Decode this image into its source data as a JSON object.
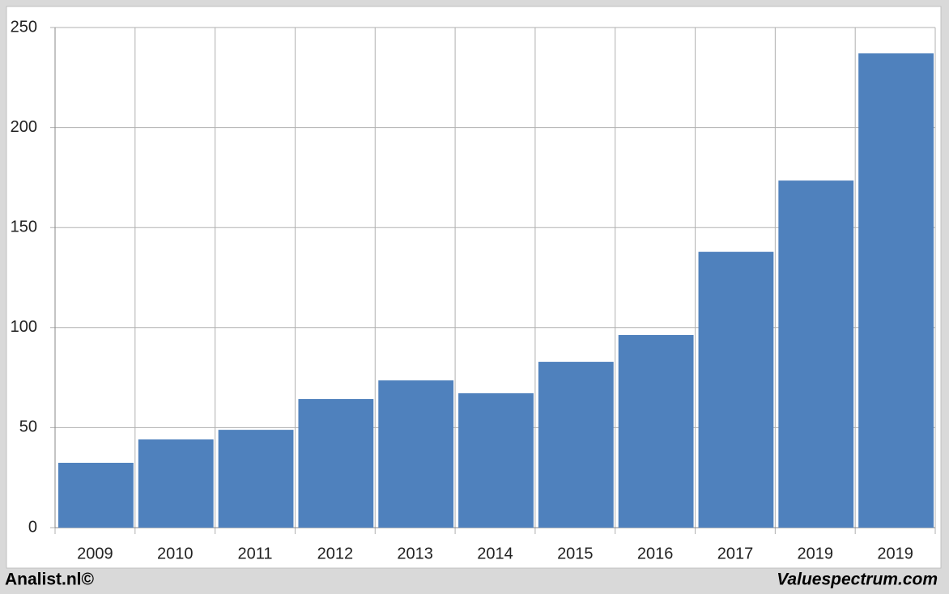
{
  "chart_data": {
    "type": "bar",
    "categories": [
      "2009",
      "2010",
      "2011",
      "2012",
      "2013",
      "2014",
      "2015",
      "2016",
      "2017",
      "2019",
      "2019"
    ],
    "values": [
      32.4,
      44.1,
      48.9,
      64.3,
      73.6,
      67.2,
      82.9,
      96.3,
      137.9,
      173.5,
      237.1
    ],
    "color": "#4f81bd",
    "ylim": [
      0,
      250
    ],
    "yticks": [
      0,
      50,
      100,
      150,
      200,
      250
    ],
    "grid": true
  },
  "footer": {
    "left": "Analist.nl©",
    "right": "Valuespectrum.com"
  }
}
